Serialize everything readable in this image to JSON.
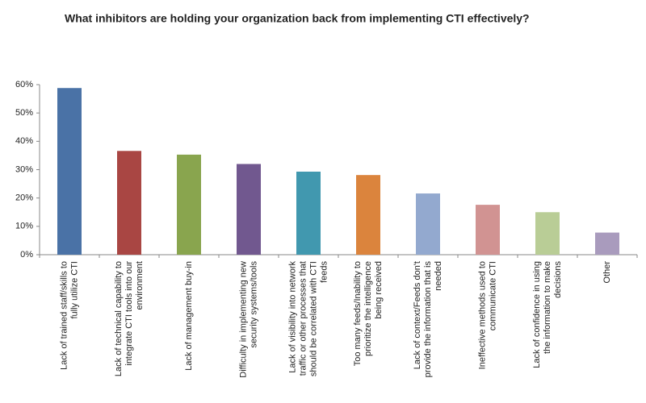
{
  "chart_data": {
    "type": "bar",
    "title": "What inhibitors are holding your organization back from implementing CTI effectively?",
    "categories": [
      "Lack of trained staff/skills to\nfully utilize CTI",
      "Lack of technical capability to\nintegrate CTI tools into our\nenvironment",
      "Lack of management buy-in",
      "Difficulty in implementing new\nsecurity systems/tools",
      "Lack of visibility into network\ntraffic or other processes that\nshould be correlated with CTI\nfeeds",
      "Too many feeds/Inability to\nprioritize the intelligence\nbeing received",
      "Lack of context/Feeds don't\nprovide the information that is\nneeded",
      "Ineffective methods used to\ncommunicate CTI",
      "Lack of confidence in using\nthe information to make\ndecisions",
      "Other"
    ],
    "values": [
      58.8,
      36.6,
      35.3,
      32.0,
      29.3,
      28.1,
      21.6,
      17.6,
      15.0,
      7.8
    ],
    "colors": [
      "#4a72a6",
      "#a94643",
      "#89a54e",
      "#71588f",
      "#4198af",
      "#db843d",
      "#93a9cf",
      "#d19392",
      "#b9cd96",
      "#a99bbd"
    ],
    "ylim": [
      0,
      60
    ],
    "yticks": [
      {
        "value": 0,
        "label": "0%"
      },
      {
        "value": 10,
        "label": "10%"
      },
      {
        "value": 20,
        "label": "20%"
      },
      {
        "value": 30,
        "label": "30%"
      },
      {
        "value": 40,
        "label": "40%"
      },
      {
        "value": 50,
        "label": "50%"
      },
      {
        "value": 60,
        "label": "60%"
      }
    ],
    "grid": false
  }
}
